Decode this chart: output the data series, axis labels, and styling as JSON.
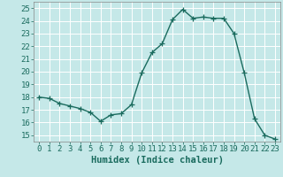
{
  "x": [
    0,
    1,
    2,
    3,
    4,
    5,
    6,
    7,
    8,
    9,
    10,
    11,
    12,
    13,
    14,
    15,
    16,
    17,
    18,
    19,
    20,
    21,
    22,
    23
  ],
  "y": [
    18.0,
    17.9,
    17.5,
    17.3,
    17.1,
    16.8,
    16.1,
    16.6,
    16.7,
    17.4,
    19.9,
    21.5,
    22.2,
    24.1,
    24.9,
    24.2,
    24.3,
    24.2,
    24.2,
    23.0,
    19.9,
    16.3,
    15.0,
    14.7
  ],
  "line_color": "#1a6b5e",
  "marker": "+",
  "markersize": 4,
  "linewidth": 1.0,
  "xlabel": "Humidex (Indice chaleur)",
  "xlim": [
    -0.5,
    23.5
  ],
  "ylim": [
    14.5,
    25.5
  ],
  "yticks": [
    15,
    16,
    17,
    18,
    19,
    20,
    21,
    22,
    23,
    24,
    25
  ],
  "xticks": [
    0,
    1,
    2,
    3,
    4,
    5,
    6,
    7,
    8,
    9,
    10,
    11,
    12,
    13,
    14,
    15,
    16,
    17,
    18,
    19,
    20,
    21,
    22,
    23
  ],
  "bg_color": "#c5e8e8",
  "grid_color": "#ffffff",
  "tick_fontsize": 6.5,
  "label_fontsize": 7.5
}
